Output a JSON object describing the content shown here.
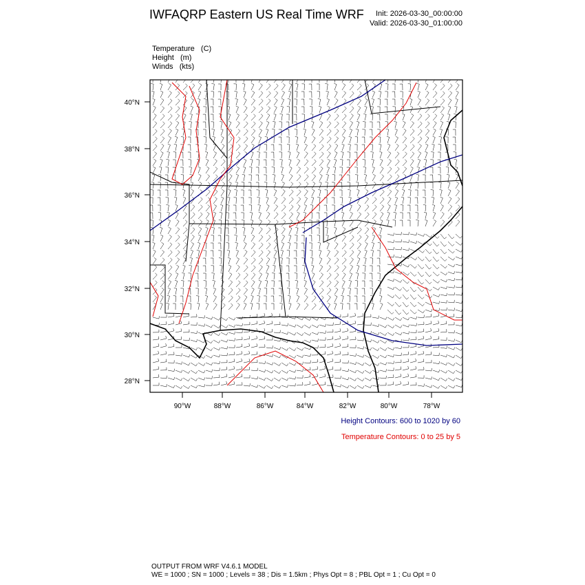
{
  "header": {
    "title": "IWFAQRP Eastern US Real Time WRF",
    "init": "Init: 2026-03-30_00:00:00",
    "valid": "Valid: 2026-03-30_01:00:00"
  },
  "fields": [
    "Temperature   (C)",
    "Height   (m)",
    "Winds   (kts)"
  ],
  "map": {
    "lat_labels": [
      "40°N",
      "38°N",
      "36°N",
      "34°N",
      "32°N",
      "30°N",
      "28°N"
    ],
    "lon_labels": [
      "90°W",
      "88°W",
      "86°W",
      "84°W",
      "82°W",
      "80°W",
      "78°W"
    ]
  },
  "legend": {
    "height": "Height Contours: 600 to 1020 by 60",
    "temperature": "Temperature Contours: 0 to 25 by 5"
  },
  "footer": {
    "line1": "OUTPUT FROM WRF V4.6.1 MODEL",
    "line2": "WE = 1000 ; SN = 1000 ; Levels = 38 ; Dis = 1.5km ; Phys Opt = 8 ; PBL Opt = 1 ; Cu Opt = 0"
  }
}
